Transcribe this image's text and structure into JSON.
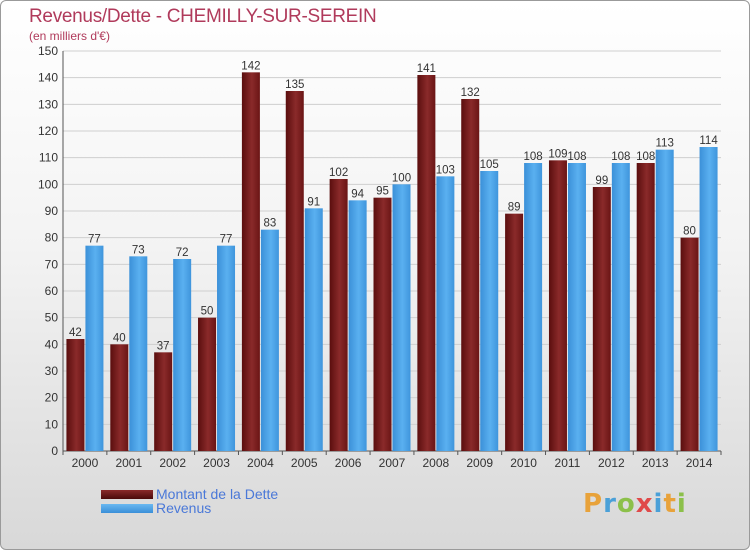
{
  "header": {
    "title": "Revenus/Dette - CHEMILLY-SUR-SEREIN",
    "subtitle": "(en milliers d'€)"
  },
  "legend": {
    "debt_label": "Montant de la Dette",
    "revenue_label": "Revenus"
  },
  "logo": {
    "letters": [
      "P",
      "r",
      "o",
      "x",
      "i",
      "t",
      "i"
    ],
    "colors": [
      "#e8a23a",
      "#4aa0d8",
      "#8cc04a",
      "#e04a4a",
      "#4aa0d8",
      "#e8a23a",
      "#8cc04a"
    ]
  },
  "colors": {
    "debt": "#7a1c1c",
    "revenue": "#4aa3e6",
    "grid": "#cfcfcf",
    "text": "#333333"
  },
  "chart_data": {
    "type": "bar",
    "categories": [
      "2000",
      "2001",
      "2002",
      "2003",
      "2004",
      "2005",
      "2006",
      "2007",
      "2008",
      "2009",
      "2010",
      "2011",
      "2012",
      "2013",
      "2014"
    ],
    "series": [
      {
        "name": "Montant de la Dette",
        "values": [
          42,
          40,
          37,
          50,
          142,
          135,
          102,
          95,
          141,
          132,
          89,
          109,
          99,
          108,
          80
        ]
      },
      {
        "name": "Revenus",
        "values": [
          77,
          73,
          72,
          77,
          83,
          91,
          94,
          100,
          103,
          105,
          108,
          108,
          108,
          113,
          114
        ]
      }
    ],
    "title": "Revenus/Dette - CHEMILLY-SUR-SEREIN",
    "ylabel": "(en milliers d'€)",
    "ylim": [
      0,
      150
    ],
    "yticks": [
      0,
      10,
      20,
      30,
      40,
      50,
      60,
      70,
      80,
      90,
      100,
      110,
      120,
      130,
      140,
      150
    ],
    "grid": true,
    "legend_position": "bottom-left"
  }
}
